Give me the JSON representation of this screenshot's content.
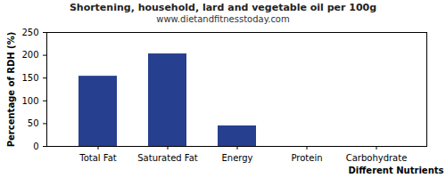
{
  "chart_data": {
    "type": "bar",
    "title": "Shortening, household, lard and vegetable oil per 100g",
    "subtitle": "www.dietandfitnesstoday.com",
    "x_label": "Different Nutrients",
    "y_label": "Percentage of RDH (%)",
    "categories": [
      "Total Fat",
      "Saturated Fat",
      "Energy",
      "Protein",
      "Carbohydrate"
    ],
    "values": [
      154,
      203,
      45,
      0,
      0
    ],
    "color": "#263f8f",
    "ylim": [
      0,
      250
    ],
    "yticks": [
      0,
      50,
      100,
      150,
      200,
      250
    ],
    "grid": false
  }
}
